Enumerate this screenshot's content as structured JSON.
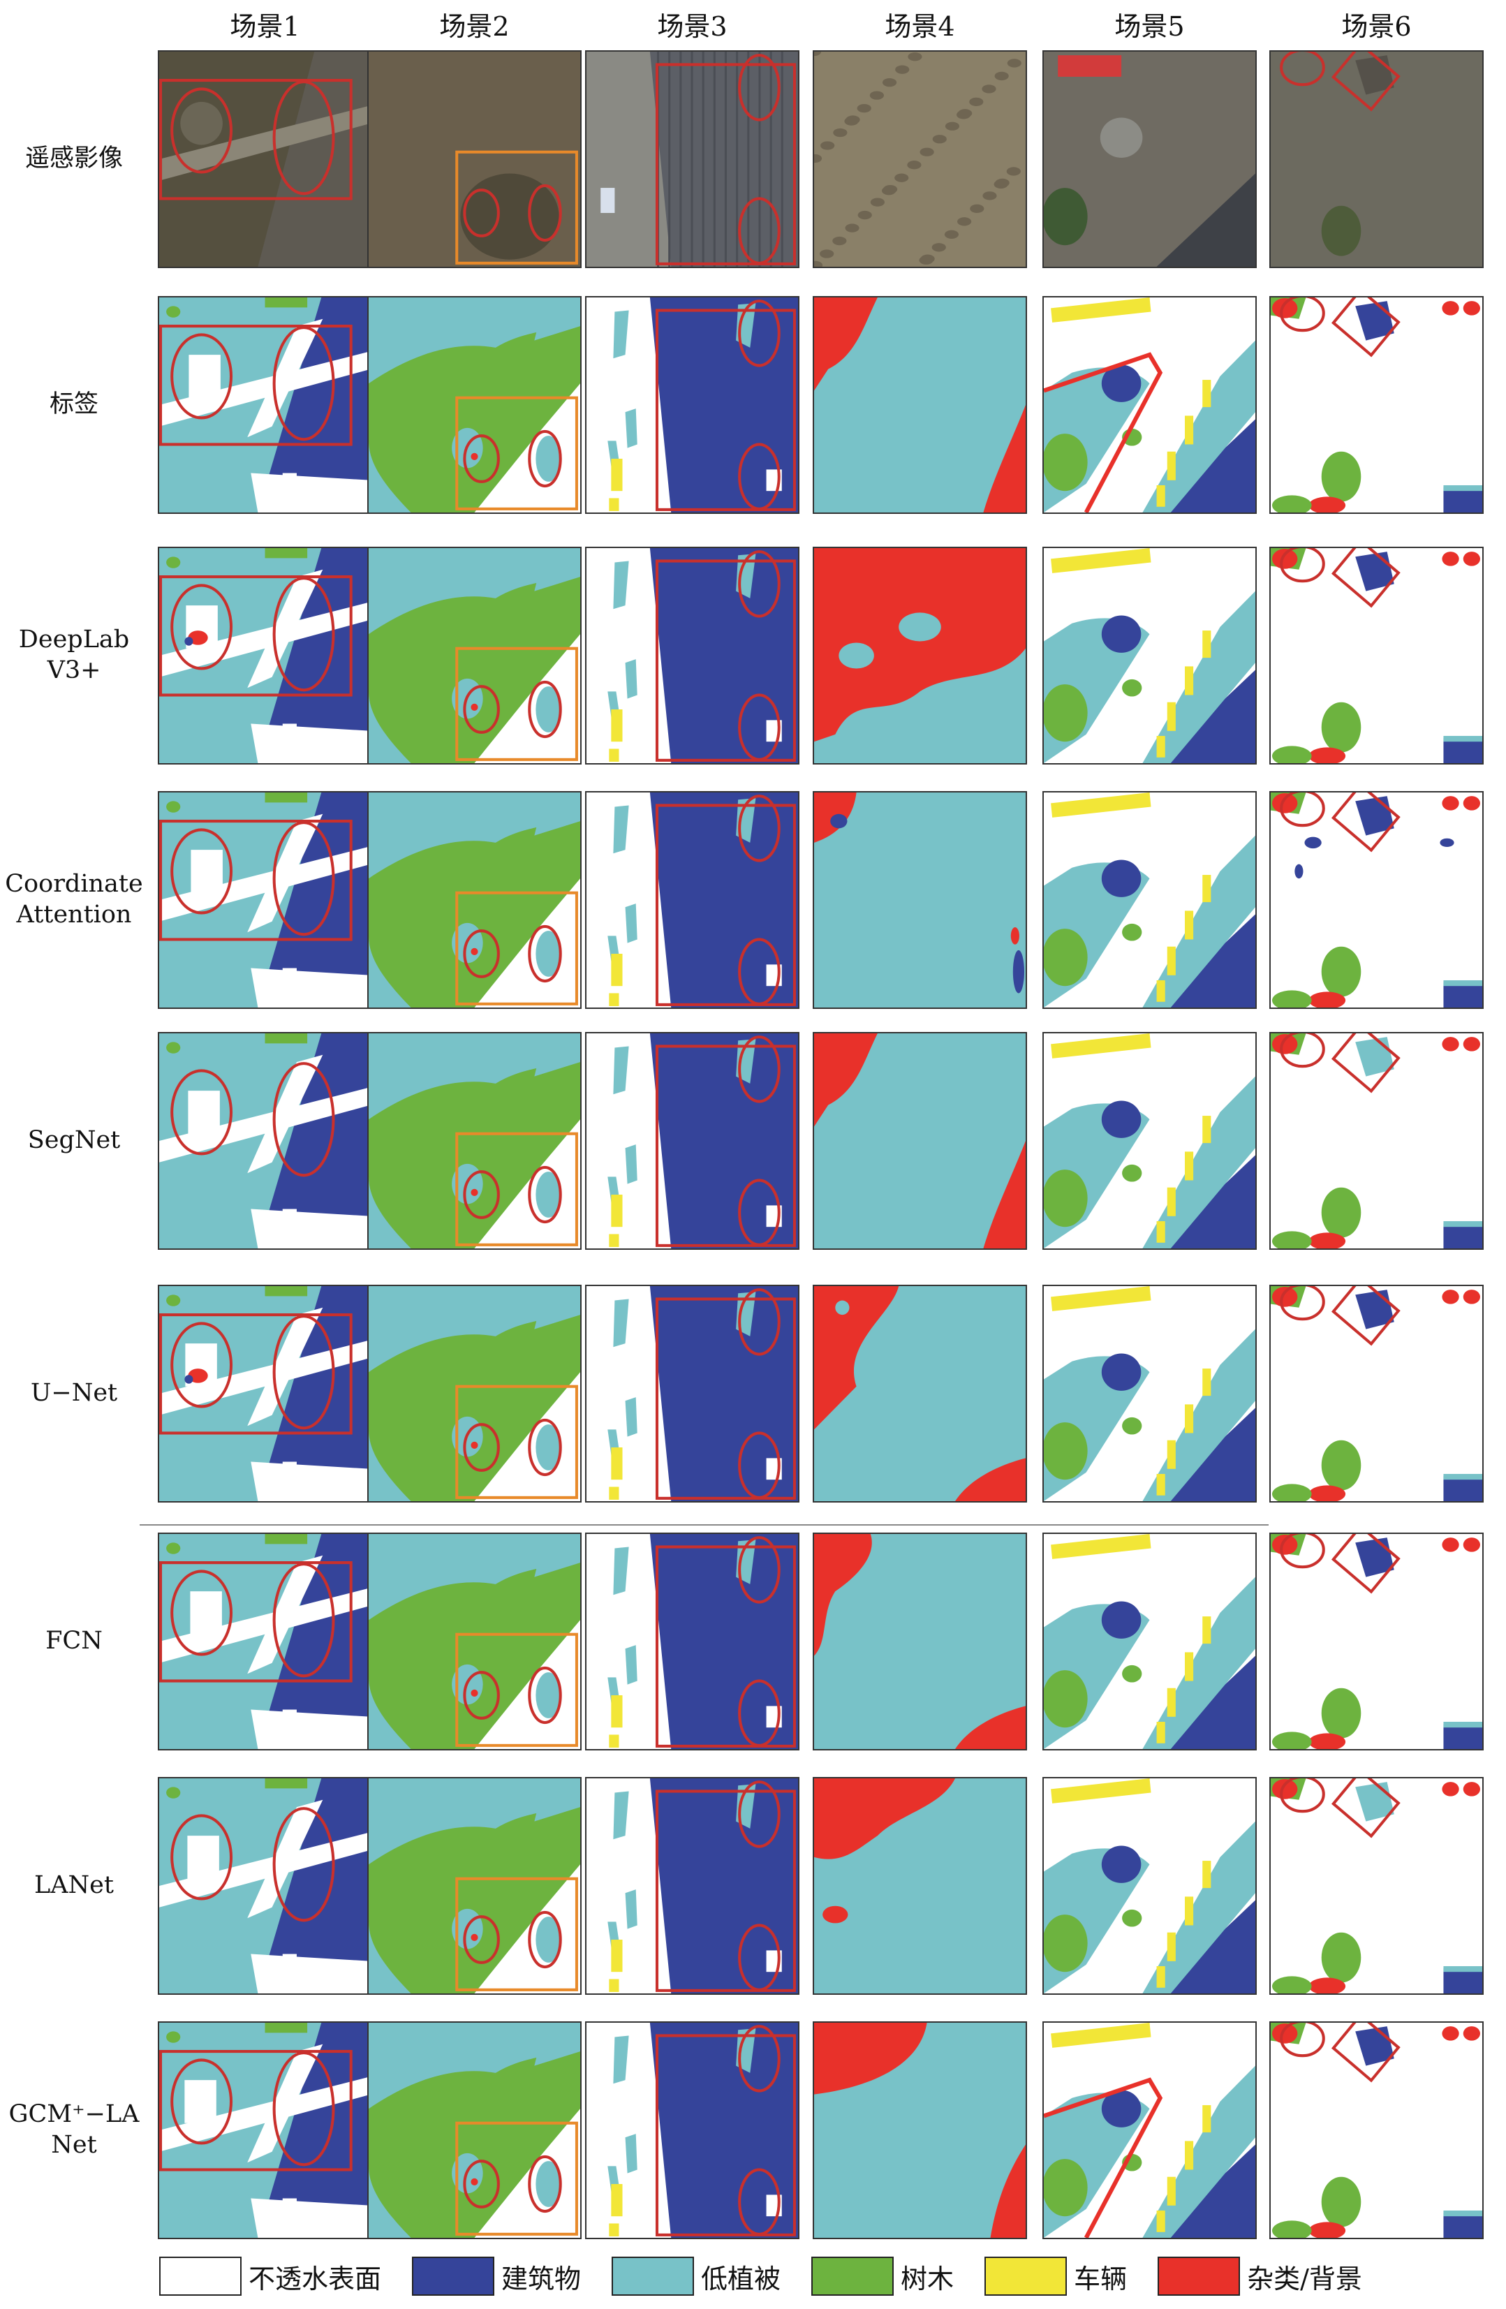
{
  "columns": [
    "场景1",
    "场景2",
    "场景3",
    "场景4",
    "场景5",
    "场景6"
  ],
  "rows": [
    {
      "label": "遥感影像",
      "kind": "photo"
    },
    {
      "label": "标签",
      "kind": "seg"
    },
    {
      "label": "DeepLab\nV3+",
      "kind": "seg"
    },
    {
      "label": "Coordinate\nAttention",
      "kind": "seg"
    },
    {
      "label": "SegNet",
      "kind": "seg"
    },
    {
      "label": "U−Net",
      "kind": "seg"
    },
    {
      "label": "FCN",
      "kind": "seg"
    },
    {
      "label": "LANet",
      "kind": "seg"
    },
    {
      "label": "GCM⁺−LA\nNet",
      "kind": "seg"
    }
  ],
  "legend": [
    {
      "label": "不透水表面",
      "color": "#ffffff"
    },
    {
      "label": "建筑物",
      "color": "#35449a"
    },
    {
      "label": "低植被",
      "color": "#78c2c8"
    },
    {
      "label": "树木",
      "color": "#6db33f"
    },
    {
      "label": "车辆",
      "color": "#f2e637"
    },
    {
      "label": "杂类/背景",
      "color": "#e8312a"
    }
  ],
  "colors": {
    "impervious": "#ffffff",
    "building": "#35449a",
    "low_veg": "#78c2c8",
    "tree": "#6db33f",
    "car": "#f2e637",
    "clutter": "#e8312a",
    "highlight_red": "#c9302c",
    "highlight_orange": "#e88a2a"
  }
}
